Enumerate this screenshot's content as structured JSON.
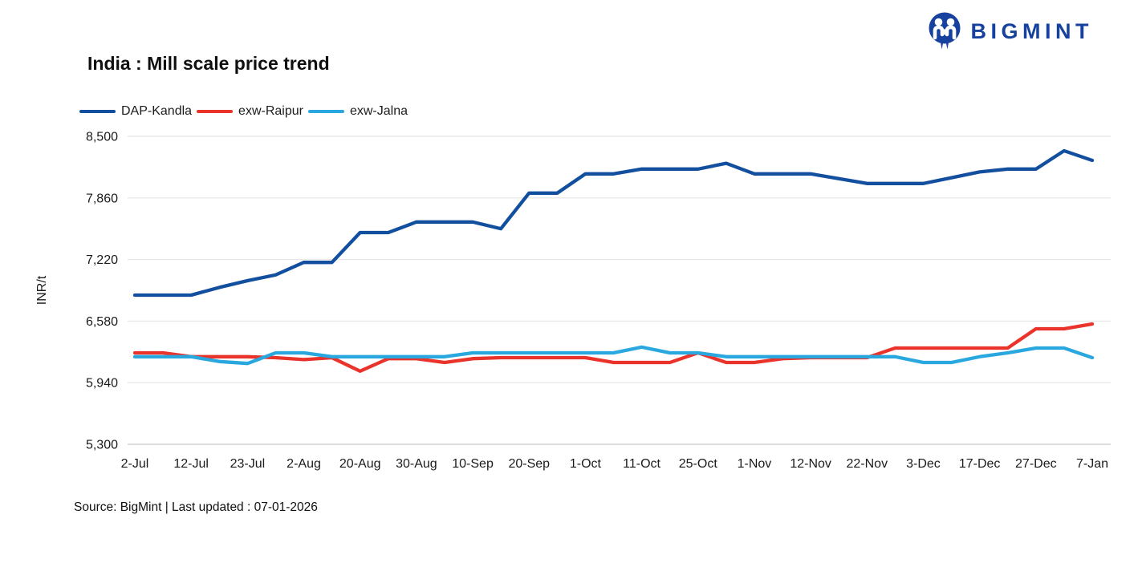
{
  "header": {
    "title": "India : Mill scale price trend",
    "logo_text": "BIGMINT",
    "logo_color": "#17419e"
  },
  "legend": [
    {
      "label": "DAP-Kandla",
      "color": "#124f9f"
    },
    {
      "label": "exw-Raipur",
      "color": "#ea332b"
    },
    {
      "label": "exw-Jalna",
      "color": "#29a8e0"
    }
  ],
  "footer": {
    "source": "Source: BigMint | Last updated : 07-01-2026"
  },
  "chart_data": {
    "type": "line",
    "title": "India : Mill scale price trend",
    "xlabel": "",
    "ylabel": "INR/t",
    "ylim": [
      5300,
      8500
    ],
    "yticks": [
      5300,
      5940,
      6580,
      7220,
      7860,
      8500
    ],
    "ytick_labels": [
      "5,300",
      "5,940",
      "6,580",
      "7,220",
      "7,860",
      "8,500"
    ],
    "x_tick_labels": [
      "2-Jul",
      "12-Jul",
      "23-Jul",
      "2-Aug",
      "20-Aug",
      "30-Aug",
      "10-Sep",
      "20-Sep",
      "1-Oct",
      "11-Oct",
      "25-Oct",
      "1-Nov",
      "12-Nov",
      "22-Nov",
      "3-Dec",
      "17-Dec",
      "27-Dec",
      "7-Jan"
    ],
    "label_every": 2,
    "grid": true,
    "legend_position": "top-left",
    "series": [
      {
        "name": "DAP-Kandla",
        "color": "#124f9f",
        "values": [
          6850,
          6850,
          6850,
          6930,
          7000,
          7060,
          7190,
          7190,
          7500,
          7500,
          7610,
          7610,
          7610,
          7540,
          7910,
          7910,
          8110,
          8110,
          8160,
          8160,
          8160,
          8220,
          8110,
          8110,
          8110,
          8060,
          8010,
          8010,
          8010,
          8070,
          8130,
          8160,
          8160,
          8350,
          8250
        ]
      },
      {
        "name": "exw-Raipur",
        "color": "#ea332b",
        "values": [
          6250,
          6250,
          6210,
          6210,
          6210,
          6200,
          6180,
          6200,
          6060,
          6190,
          6190,
          6150,
          6190,
          6200,
          6200,
          6200,
          6200,
          6150,
          6150,
          6150,
          6250,
          6150,
          6150,
          6190,
          6200,
          6200,
          6200,
          6300,
          6300,
          6300,
          6300,
          6300,
          6500,
          6500,
          6550
        ]
      },
      {
        "name": "exw-Jalna",
        "color": "#29a8e0",
        "values": [
          6210,
          6210,
          6210,
          6160,
          6140,
          6250,
          6250,
          6210,
          6210,
          6210,
          6210,
          6210,
          6250,
          6250,
          6250,
          6250,
          6250,
          6250,
          6310,
          6250,
          6250,
          6210,
          6210,
          6210,
          6210,
          6210,
          6210,
          6210,
          6150,
          6150,
          6210,
          6250,
          6300,
          6300,
          6200
        ]
      }
    ]
  }
}
